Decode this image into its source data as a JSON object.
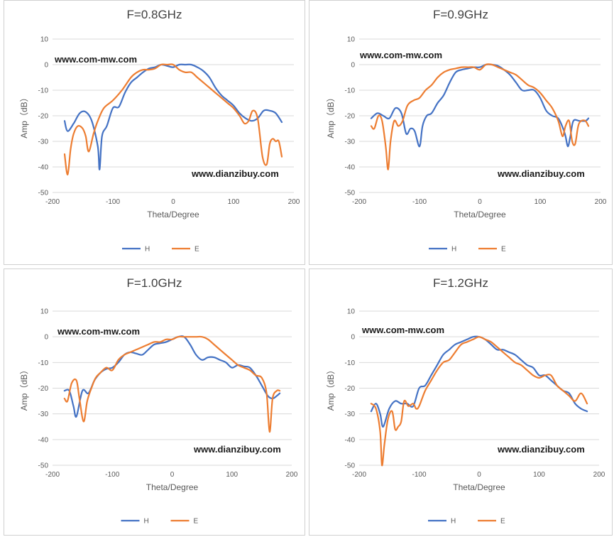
{
  "colors": {
    "H": "#4472C4",
    "E": "#ED7D31",
    "grid": "#d9d9d9",
    "text": "#595959"
  },
  "chart_data": [
    {
      "type": "line",
      "title": "F=0.8GHz",
      "watermark_top": "www.com-mw.com",
      "watermark_bottom": "www.dianzibuy.com",
      "xlabel": "Theta/Degree",
      "ylabel": "Amp（dB）",
      "xlim": [
        -200,
        200
      ],
      "ylim": [
        -50,
        10
      ],
      "xticks": [
        "-200",
        "-100",
        "0",
        "100",
        "200"
      ],
      "yticks": [
        "10",
        "0",
        "-10",
        "-20",
        "-30",
        "-40",
        "-50"
      ],
      "grid": true,
      "legend_position": "bottom",
      "series": [
        {
          "name": "H",
          "x": [
            -180,
            -175,
            -165,
            -155,
            -145,
            -135,
            -125,
            -122,
            -118,
            -110,
            -100,
            -90,
            -80,
            -70,
            -60,
            -50,
            -40,
            -30,
            -20,
            -10,
            0,
            10,
            20,
            30,
            40,
            50,
            60,
            70,
            80,
            90,
            100,
            110,
            120,
            130,
            140,
            150,
            160,
            170,
            180
          ],
          "y": [
            -22,
            -26,
            -23,
            -19,
            -18.5,
            -22,
            -32,
            -41,
            -28,
            -24,
            -17,
            -16.5,
            -11,
            -7,
            -5,
            -3,
            -1.5,
            -1,
            0,
            -0.5,
            -1,
            0,
            0,
            0,
            -1,
            -2.5,
            -5,
            -9,
            -12,
            -14,
            -16,
            -19,
            -21,
            -22,
            -21,
            -18,
            -18,
            -19,
            -22.5
          ]
        },
        {
          "name": "E",
          "x": [
            -180,
            -175,
            -170,
            -165,
            -158,
            -150,
            -145,
            -140,
            -132,
            -125,
            -115,
            -100,
            -85,
            -70,
            -60,
            -50,
            -40,
            -30,
            -20,
            -10,
            0,
            10,
            20,
            30,
            40,
            50,
            60,
            70,
            80,
            90,
            100,
            110,
            118,
            125,
            132,
            140,
            148,
            155,
            160,
            165,
            170,
            175,
            180
          ],
          "y": [
            -35,
            -43,
            -33,
            -27,
            -24,
            -25,
            -28,
            -34,
            -27,
            -22,
            -17,
            -14,
            -10,
            -5,
            -3,
            -2,
            -2,
            -1.5,
            0,
            0,
            0,
            -2,
            -3,
            -3,
            -5,
            -7,
            -9,
            -11,
            -13,
            -15,
            -17,
            -20,
            -23,
            -22,
            -18,
            -21,
            -36,
            -39,
            -31,
            -29,
            -30,
            -30,
            -36
          ]
        }
      ]
    },
    {
      "type": "line",
      "title": "F=0.9GHz",
      "watermark_top": "www.com-mw.com",
      "watermark_bottom": "www.dianzibuy.com",
      "xlabel": "Theta/Degree",
      "ylabel": "Amp（dB）",
      "xlim": [
        -200,
        200
      ],
      "ylim": [
        -50,
        10
      ],
      "xticks": [
        "-200",
        "-100",
        "0",
        "100",
        "200"
      ],
      "yticks": [
        "10",
        "0",
        "-10",
        "-20",
        "-30",
        "-40",
        "-50"
      ],
      "grid": true,
      "legend_position": "bottom",
      "series": [
        {
          "name": "H",
          "x": [
            -180,
            -170,
            -160,
            -150,
            -140,
            -130,
            -122,
            -115,
            -108,
            -100,
            -95,
            -88,
            -80,
            -70,
            -60,
            -50,
            -40,
            -30,
            -20,
            -10,
            0,
            10,
            20,
            30,
            40,
            50,
            60,
            70,
            80,
            90,
            100,
            110,
            120,
            130,
            138,
            142,
            146,
            150,
            155,
            165,
            175,
            180
          ],
          "y": [
            -21,
            -19,
            -20,
            -21,
            -17,
            -19,
            -27,
            -25,
            -26,
            -32,
            -24,
            -20,
            -19,
            -15,
            -12,
            -7,
            -3,
            -2,
            -1.5,
            -1,
            -1,
            0,
            0,
            -0.5,
            -2,
            -4,
            -7,
            -10,
            -10,
            -10,
            -13,
            -18,
            -20,
            -21,
            -25,
            -28,
            -32,
            -28,
            -22,
            -22,
            -22,
            -21
          ]
        },
        {
          "name": "E",
          "x": [
            -180,
            -175,
            -168,
            -162,
            -156,
            -152,
            -148,
            -142,
            -135,
            -128,
            -120,
            -110,
            -100,
            -90,
            -80,
            -70,
            -60,
            -50,
            -40,
            -30,
            -20,
            -10,
            0,
            10,
            20,
            30,
            40,
            50,
            60,
            70,
            80,
            90,
            100,
            110,
            120,
            130,
            137,
            142,
            148,
            153,
            158,
            163,
            168,
            175,
            180
          ],
          "y": [
            -24,
            -25,
            -20,
            -22,
            -32,
            -41,
            -30,
            -22,
            -24,
            -22,
            -16,
            -14,
            -13,
            -10,
            -8,
            -5,
            -3,
            -2,
            -1.5,
            -1,
            -1,
            -1,
            -2,
            0,
            0,
            -1,
            -2,
            -3,
            -4,
            -6,
            -8,
            -9,
            -11,
            -14,
            -17,
            -22,
            -28,
            -24,
            -22,
            -30,
            -31,
            -24,
            -22,
            -22,
            -24
          ]
        }
      ]
    },
    {
      "type": "line",
      "title": "F=1.0GHz",
      "watermark_top": "www.com-mw.com",
      "watermark_bottom": "www.dianzibuy.com",
      "xlabel": "Theta/Degree",
      "ylabel": "Amp（dB）",
      "xlim": [
        -200,
        200
      ],
      "ylim": [
        -50,
        10
      ],
      "xticks": [
        "-200",
        "-100",
        "0",
        "100",
        "200"
      ],
      "yticks": [
        "10",
        "0",
        "-10",
        "-20",
        "-30",
        "-40",
        "-50"
      ],
      "grid": true,
      "legend_position": "bottom",
      "series": [
        {
          "name": "H",
          "x": [
            -180,
            -172,
            -165,
            -160,
            -150,
            -140,
            -130,
            -120,
            -110,
            -100,
            -90,
            -80,
            -70,
            -60,
            -50,
            -40,
            -30,
            -20,
            -10,
            0,
            10,
            20,
            30,
            40,
            50,
            60,
            70,
            80,
            90,
            100,
            110,
            120,
            130,
            140,
            150,
            160,
            168,
            175,
            180
          ],
          "y": [
            -21,
            -21,
            -27,
            -31,
            -21,
            -22,
            -17,
            -14,
            -12.5,
            -12,
            -10,
            -7,
            -6,
            -6.5,
            -7,
            -5,
            -3,
            -2.5,
            -2,
            -1,
            0,
            0,
            -3,
            -7,
            -9,
            -8,
            -8,
            -9,
            -10,
            -12,
            -11,
            -11.5,
            -12,
            -15,
            -19,
            -23,
            -24,
            -23,
            -22
          ]
        },
        {
          "name": "E",
          "x": [
            -180,
            -175,
            -168,
            -160,
            -155,
            -148,
            -142,
            -135,
            -128,
            -120,
            -110,
            -100,
            -90,
            -80,
            -70,
            -60,
            -50,
            -40,
            -30,
            -20,
            -10,
            0,
            10,
            20,
            30,
            40,
            50,
            60,
            70,
            80,
            90,
            100,
            110,
            120,
            130,
            140,
            150,
            158,
            163,
            168,
            175,
            180
          ],
          "y": [
            -24,
            -25,
            -18,
            -17,
            -24,
            -33,
            -25,
            -20,
            -16,
            -14,
            -12,
            -13,
            -9,
            -7,
            -6,
            -5,
            -4,
            -3,
            -2,
            -2,
            -1,
            -1,
            0,
            0,
            0,
            0,
            0,
            -1,
            -3,
            -5,
            -7,
            -9,
            -11,
            -12,
            -13,
            -15,
            -16,
            -22,
            -37,
            -24,
            -21,
            -21
          ]
        }
      ]
    },
    {
      "type": "line",
      "title": "F=1.2GHz",
      "watermark_top": "www.com-mw.com",
      "watermark_bottom": "www.dianzibuy.com",
      "xlabel": "Theta/Degree",
      "ylabel": "Amp（dB）",
      "xlim": [
        -200,
        200
      ],
      "ylim": [
        -50,
        10
      ],
      "xticks": [
        "-200",
        "-100",
        "0",
        "100",
        "200"
      ],
      "yticks": [
        "10",
        "0",
        "-10",
        "-20",
        "-30",
        "-40",
        "-50"
      ],
      "grid": true,
      "legend_position": "bottom",
      "series": [
        {
          "name": "H",
          "x": [
            -180,
            -172,
            -165,
            -160,
            -150,
            -140,
            -130,
            -120,
            -110,
            -100,
            -90,
            -80,
            -70,
            -60,
            -50,
            -40,
            -30,
            -20,
            -10,
            0,
            10,
            20,
            30,
            40,
            50,
            60,
            70,
            80,
            90,
            100,
            110,
            120,
            130,
            140,
            150,
            160,
            170,
            180
          ],
          "y": [
            -29,
            -26,
            -30,
            -35,
            -28,
            -25,
            -26,
            -26,
            -27,
            -20,
            -19,
            -15,
            -11,
            -7,
            -5,
            -3,
            -2,
            -1,
            0,
            0,
            -1,
            -3,
            -5,
            -5,
            -6,
            -7,
            -9,
            -11,
            -12,
            -15,
            -15,
            -17,
            -19,
            -21,
            -22,
            -26,
            -28,
            -29
          ]
        },
        {
          "name": "E",
          "x": [
            -180,
            -172,
            -165,
            -162,
            -158,
            -152,
            -145,
            -140,
            -135,
            -130,
            -125,
            -118,
            -110,
            -105,
            -100,
            -90,
            -80,
            -70,
            -60,
            -50,
            -40,
            -30,
            -20,
            -10,
            0,
            10,
            20,
            30,
            40,
            50,
            60,
            70,
            80,
            90,
            100,
            110,
            120,
            130,
            140,
            150,
            160,
            170,
            180
          ],
          "y": [
            -26,
            -28,
            -37,
            -50,
            -42,
            -32,
            -29,
            -36,
            -35,
            -33,
            -25,
            -27,
            -26,
            -28,
            -27,
            -21,
            -17,
            -13,
            -10,
            -9,
            -6,
            -3,
            -2,
            -1,
            0,
            -1,
            -2,
            -4,
            -6,
            -8,
            -10,
            -11,
            -13,
            -15,
            -16,
            -15,
            -15,
            -19,
            -21,
            -23,
            -25,
            -22,
            -26
          ]
        }
      ]
    }
  ]
}
